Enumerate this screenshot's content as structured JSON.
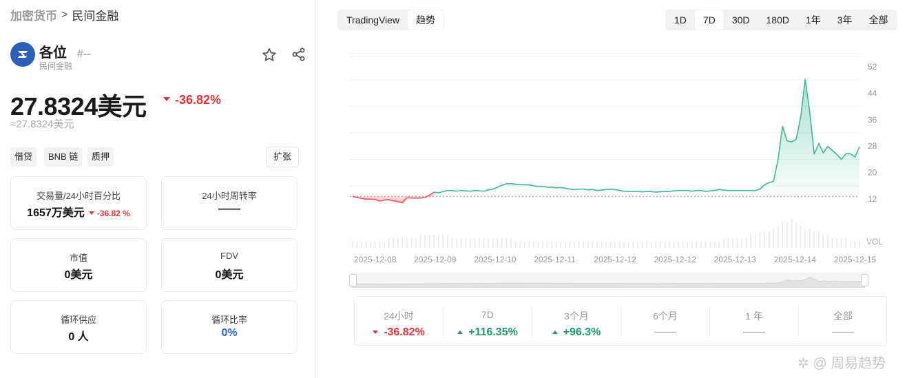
{
  "breadcrumb": {
    "home": "加密货币",
    "separator": ">",
    "current": "民间金融"
  },
  "coin": {
    "name": "各位",
    "subtitle": "民间金融",
    "rank": "#--",
    "logo_color": "#2c5fb8"
  },
  "price": {
    "value": "27.8324美元",
    "change": "-36.82%",
    "approx": "≈27.8324美元"
  },
  "tags": [
    "借贷",
    "BNB 链",
    "质押"
  ],
  "expand_label": "扩张",
  "cards": [
    {
      "label": "交易量/24小时百分比",
      "value": "1657万美元",
      "change": "-36.82 %"
    },
    {
      "label": "24小时周转率",
      "value": "——"
    },
    {
      "label": "市值",
      "value": "0美元"
    },
    {
      "label": "FDV",
      "value": "0美元"
    },
    {
      "label": "循环供应",
      "value": "0 人"
    },
    {
      "label": "循环比率",
      "value": "0%"
    }
  ],
  "chart_tabs": [
    {
      "label": "TradingView",
      "active": false
    },
    {
      "label": "趋势",
      "active": true
    }
  ],
  "ranges": [
    {
      "label": "1D",
      "active": false
    },
    {
      "label": "7D",
      "active": true
    },
    {
      "label": "30D",
      "active": false
    },
    {
      "label": "180D",
      "active": false
    },
    {
      "label": "1年",
      "active": false
    },
    {
      "label": "3年",
      "active": false
    },
    {
      "label": "全部",
      "active": false
    }
  ],
  "chart_data": {
    "type": "line",
    "x_tick_labels": [
      "2025-12-08",
      "2025-12-09",
      "2025-12-10",
      "2025-12-11",
      "2025-12-12",
      "2025-12-12",
      "2025-12-13",
      "2025-12-14",
      "2025-12-15"
    ],
    "y_ticks": [
      12,
      20,
      28,
      36,
      44,
      52
    ],
    "ylim": [
      6,
      58
    ],
    "volume_label": "VOL",
    "baseline": 12.8,
    "series": [
      {
        "values": [
          12.8,
          12.5,
          12.2,
          12.0,
          12.0,
          11.9,
          11.4,
          11.7,
          11.8,
          11.5,
          11.2,
          10.9,
          12.4,
          12.3,
          12.3,
          12.3,
          12.5,
          13.2,
          14.1,
          13.9,
          14.3,
          14.6,
          14.6,
          14.4,
          14.6,
          14.5,
          14.4,
          14.6,
          14.5,
          14.4,
          14.8,
          15.0,
          15.6,
          16.2,
          16.6,
          16.7,
          16.5,
          16.4,
          16.3,
          16.3,
          16.0,
          15.8,
          15.8,
          15.6,
          15.6,
          15.4,
          15.5,
          15.3,
          15.0,
          14.9,
          15.0,
          15.0,
          14.8,
          14.9,
          14.6,
          14.7,
          14.9,
          15.0,
          14.9,
          14.6,
          14.4,
          14.3,
          14.3,
          14.3,
          14.2,
          14.3,
          14.3,
          14.1,
          14.2,
          14.3,
          14.3,
          14.5,
          14.6,
          14.6,
          14.6,
          14.4,
          14.6,
          14.6,
          14.3,
          14.5,
          14.6,
          14.9,
          14.7,
          14.6,
          14.6,
          14.6,
          14.6,
          14.6,
          14.6,
          14.6,
          15.0,
          16.3,
          17.0,
          17.3,
          24.0,
          34.0,
          29.6,
          29.3,
          30.0,
          36.7,
          48.2,
          38.4,
          25.5,
          28.8,
          26.0,
          27.9,
          26.7,
          25.5,
          24.0,
          25.7,
          25.7,
          24.7,
          27.8
        ]
      }
    ],
    "volume": [
      2,
      2,
      2,
      2,
      2,
      2,
      2,
      2,
      3,
      3,
      3,
      3,
      3,
      3,
      3,
      4,
      4,
      4,
      4,
      4,
      4,
      4,
      3,
      3,
      3,
      3,
      3,
      3,
      3,
      3,
      3,
      3,
      3,
      3,
      3,
      3,
      2,
      2,
      2,
      2,
      2,
      2,
      2,
      2,
      2,
      2,
      2,
      2,
      2,
      2,
      2,
      2,
      2,
      2,
      2,
      2,
      2,
      2,
      2,
      2,
      2,
      2,
      2,
      2,
      2,
      2,
      2,
      2,
      2,
      2,
      2,
      2,
      2,
      2,
      2,
      2,
      2,
      2,
      2,
      2,
      2,
      2,
      3,
      3,
      3,
      3,
      3,
      3,
      4,
      4,
      5,
      5,
      5,
      6,
      7,
      8,
      8,
      9,
      8,
      7,
      6,
      6,
      5,
      5,
      4,
      4,
      3,
      3,
      3,
      3,
      2,
      2,
      2
    ]
  },
  "stats": [
    {
      "label": "24小时",
      "value": "-36.82%",
      "dir": "down"
    },
    {
      "label": "7D",
      "value": "+116.35%",
      "dir": "up"
    },
    {
      "label": "3个月",
      "value": "+96.3%",
      "dir": "up"
    },
    {
      "label": "6个月",
      "value": "——",
      "dir": "none"
    },
    {
      "label": "1 年",
      "value": "——",
      "dir": "none"
    },
    {
      "label": "全部",
      "value": "——",
      "dir": "none"
    }
  ],
  "watermark": "周易趋势",
  "colors": {
    "up": "#1a9e6a",
    "down": "#e0333c",
    "brand": "#2c5fb8",
    "line_up": "#3fb89a",
    "line_down": "#e8545c"
  }
}
